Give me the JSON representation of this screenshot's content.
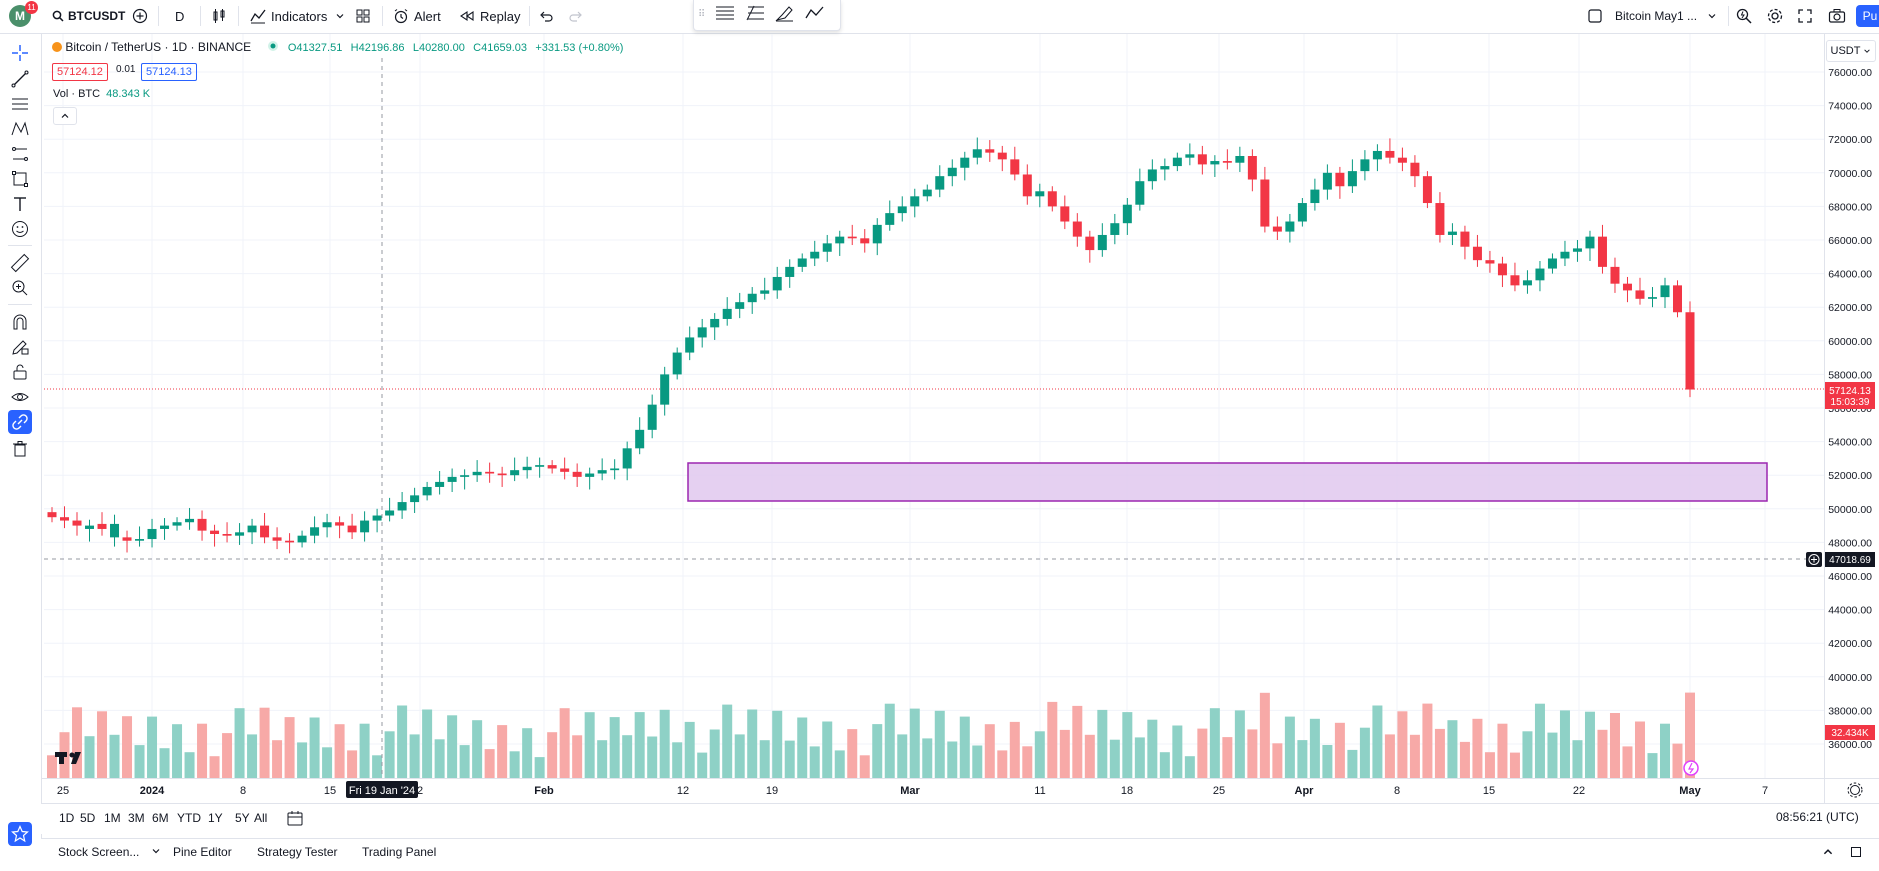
{
  "toolbar": {
    "avatar_letter": "M",
    "notifications": "11",
    "symbol": "BTCUSDT",
    "interval": "D",
    "indicators_label": "Indicators",
    "alert_label": "Alert",
    "replay_label": "Replay",
    "layout_name": "Bitcoin May1 ...",
    "publish_label": "Pu"
  },
  "legend": {
    "title": "Bitcoin / TetherUS · 1D · BINANCE",
    "open": "O41327.51",
    "high": "H42196.86",
    "low": "L40280.00",
    "close": "C41659.03",
    "change": "+331.53 (+0.80%)",
    "sell_price": "57124.12",
    "spread": "0.01",
    "buy_price": "57124.13",
    "volume_label": "Vol · BTC",
    "volume_value": "48.343 K"
  },
  "price_scale": {
    "currency": "USDT",
    "labels": [
      "76000.00",
      "74000.00",
      "72000.00",
      "70000.00",
      "68000.00",
      "66000.00",
      "64000.00",
      "62000.00",
      "60000.00",
      "58000.00",
      "56000.00",
      "54000.00",
      "52000.00",
      "50000.00",
      "48000.00",
      "46000.00",
      "44000.00",
      "42000.00",
      "40000.00",
      "38000.00",
      "36000.00"
    ],
    "current_price": "57124.13",
    "countdown": "15:03:39",
    "crosshair_price": "47018.69",
    "volume_tag": "32.434K"
  },
  "time_scale": {
    "labels": [
      "25",
      "2024",
      "8",
      "15",
      "2",
      "Feb",
      "12",
      "19",
      "Mar",
      "11",
      "18",
      "25",
      "Apr",
      "8",
      "15",
      "22",
      "May",
      "7"
    ],
    "crosshair_date": "Fri 19 Jan '24"
  },
  "ranges": [
    "1D",
    "5D",
    "1M",
    "3M",
    "6M",
    "YTD",
    "1Y",
    "5Y",
    "All"
  ],
  "clock": "08:56:21 (UTC)",
  "bottom_tabs": [
    "Stock Screen...",
    "Pine Editor",
    "Strategy Tester",
    "Trading Panel"
  ],
  "colors": {
    "up": "#089981",
    "down": "#f23645",
    "zone_fill": "#e1c8ef",
    "zone_border": "#9c27b0",
    "accent": "#2962ff"
  }
}
